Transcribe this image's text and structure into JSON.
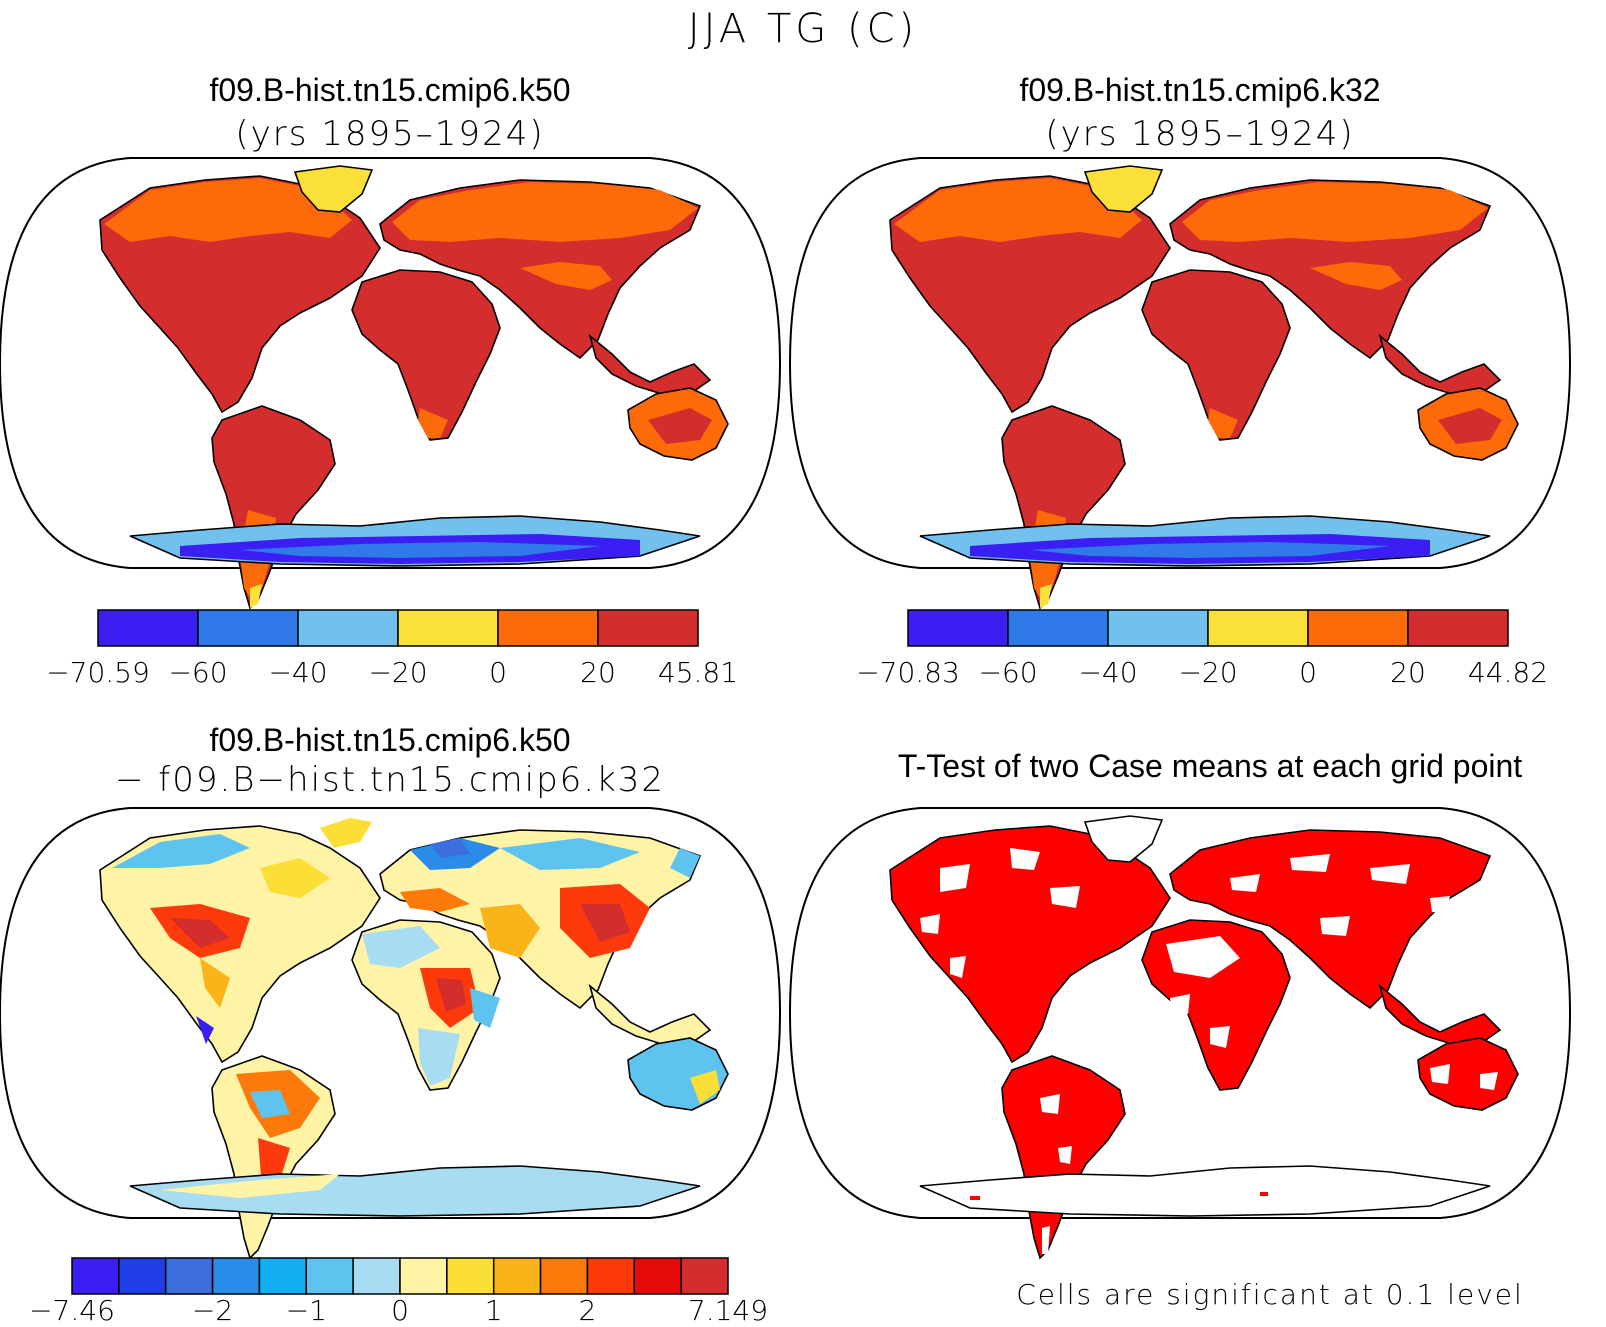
{
  "figure_title": "JJA TG (C)",
  "panels": [
    {
      "title": "f09.B-hist.tn15.cmip6.k50",
      "subtitle": "(yrs 1895–1924)",
      "colorbar": {
        "labels": [
          "−70.59",
          "−60",
          "−40",
          "−20",
          "0",
          "20",
          "45.81"
        ],
        "colors": [
          "#3a1ef2",
          "#2f7ae8",
          "#72c0ee",
          "#fbe03a",
          "#fc6a0a",
          "#d42d2d"
        ]
      }
    },
    {
      "title": "f09.B-hist.tn15.cmip6.k32",
      "subtitle": "(yrs 1895–1924)",
      "colorbar": {
        "labels": [
          "−70.83",
          "−60",
          "−40",
          "−20",
          "0",
          "20",
          "44.82"
        ],
        "colors": [
          "#3a1ef2",
          "#2f7ae8",
          "#72c0ee",
          "#fbe03a",
          "#fc6a0a",
          "#d42d2d"
        ]
      }
    },
    {
      "title": "f09.B-hist.tn15.cmip6.k50",
      "subtitle": "− f09.B−hist.tn15.cmip6.k32",
      "colorbar": {
        "labels": [
          "−7.46",
          "−2",
          "−1",
          "0",
          "1",
          "2",
          "7.149"
        ],
        "colors": [
          "#3a1ef2",
          "#1f3ee6",
          "#3d6ee0",
          "#2a8ce8",
          "#11aef2",
          "#5ec3ee",
          "#a8dcf3",
          "#fff3a6",
          "#fbde36",
          "#fbb31a",
          "#fc7a0a",
          "#fc3a0c",
          "#e60a0a",
          "#d42d2d"
        ]
      }
    },
    {
      "title": "T-Test of two Case means at each grid point",
      "note": "Cells are significant at 0.1 level"
    }
  ]
}
